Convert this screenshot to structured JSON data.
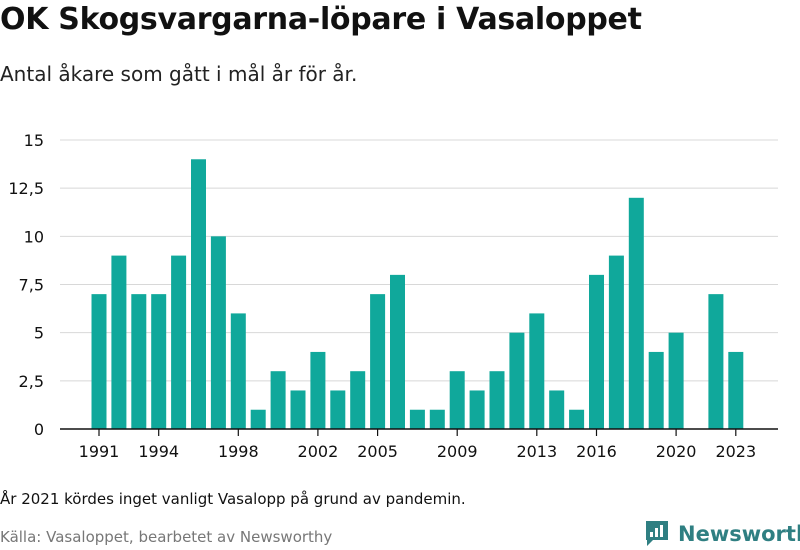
{
  "title": "OK Skogsvargarna-löpare i Vasaloppet",
  "subtitle": "Antal åkare som gått i mål år för år.",
  "note": "År 2021 kördes inget vanligt Vasalopp på grund av pandemin.",
  "source": "Källa: Vasaloppet, bearbetet av Newsworthy",
  "logo_text": "Newsworthy",
  "colors": {
    "bar": "#10a89b",
    "grid": "#d8d8d8",
    "axis": "#111111",
    "brand": "#2f7f82"
  },
  "chart_data": {
    "type": "bar",
    "x": [
      1991,
      1992,
      1993,
      1994,
      1995,
      1996,
      1997,
      1998,
      1999,
      2000,
      2001,
      2002,
      2003,
      2004,
      2005,
      2006,
      2007,
      2008,
      2009,
      2010,
      2011,
      2012,
      2013,
      2014,
      2015,
      2016,
      2017,
      2018,
      2019,
      2020,
      2021,
      2022,
      2023
    ],
    "values": [
      7,
      9,
      7,
      7,
      9,
      14,
      10,
      6,
      1,
      3,
      2,
      4,
      2,
      3,
      7,
      8,
      1,
      1,
      3,
      2,
      3,
      5,
      6,
      2,
      1,
      8,
      9,
      12,
      4,
      5,
      0,
      7,
      4
    ],
    "x_tick_labels": [
      "1991",
      "1994",
      "1998",
      "2002",
      "2005",
      "2009",
      "2013",
      "2016",
      "2020",
      "2023"
    ],
    "y_ticks": [
      0,
      2.5,
      5,
      7.5,
      10,
      12.5,
      15
    ],
    "y_tick_labels": [
      "0",
      "2,5",
      "5",
      "7,5",
      "10",
      "12,5",
      "15"
    ],
    "ylim": [
      0,
      15
    ],
    "grid": true
  }
}
